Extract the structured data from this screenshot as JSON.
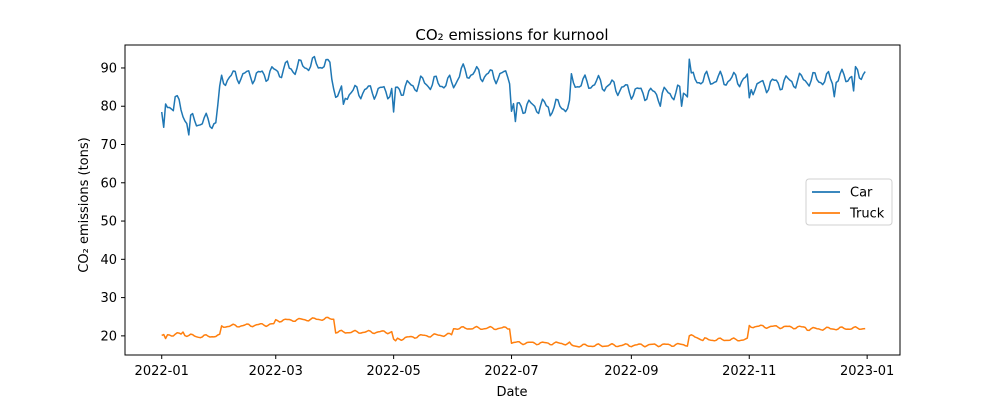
{
  "chart_data": {
    "type": "line",
    "title": "CO₂ emissions for kurnool",
    "xlabel": "Date",
    "ylabel": "CO₂ emissions (tons)",
    "xlim": [
      "2021-12-13",
      "2023-01-18"
    ],
    "ylim": [
      15,
      96
    ],
    "x_ticks": [
      "2022-01",
      "2022-03",
      "2022-05",
      "2022-07",
      "2022-09",
      "2022-11",
      "2023-01"
    ],
    "y_ticks": [
      20,
      30,
      40,
      50,
      60,
      70,
      80,
      90
    ],
    "grid": false,
    "legend_position": "center-right",
    "series": [
      {
        "name": "Car",
        "color": "#1f77b4",
        "base": [
          [
            "2022-01-01",
            78.5
          ],
          [
            "2022-01-05",
            80
          ],
          [
            "2022-01-09",
            81
          ],
          [
            "2022-01-13",
            77
          ],
          [
            "2022-01-17",
            76
          ],
          [
            "2022-01-21",
            76
          ],
          [
            "2022-01-25",
            76
          ],
          [
            "2022-01-29",
            76
          ],
          [
            "2022-02-01",
            87
          ],
          [
            "2022-02-10",
            88
          ],
          [
            "2022-02-20",
            88
          ],
          [
            "2022-03-01",
            89
          ],
          [
            "2022-03-10",
            90
          ],
          [
            "2022-03-20",
            91
          ],
          [
            "2022-03-29",
            91
          ],
          [
            "2022-04-01",
            83
          ],
          [
            "2022-04-15",
            84
          ],
          [
            "2022-05-01",
            84
          ],
          [
            "2022-05-15",
            86
          ],
          [
            "2022-06-01",
            86
          ],
          [
            "2022-06-05",
            89
          ],
          [
            "2022-06-20",
            88
          ],
          [
            "2022-06-30",
            88
          ],
          [
            "2022-07-01",
            80
          ],
          [
            "2022-07-15",
            80
          ],
          [
            "2022-07-31",
            80
          ],
          [
            "2022-08-01",
            86
          ],
          [
            "2022-08-15",
            86
          ],
          [
            "2022-09-01",
            84
          ],
          [
            "2022-09-15",
            83
          ],
          [
            "2022-09-30",
            84
          ],
          [
            "2022-10-01",
            87
          ],
          [
            "2022-10-15",
            87
          ],
          [
            "2022-10-31",
            87
          ],
          [
            "2022-11-01",
            85
          ],
          [
            "2022-11-15",
            86
          ],
          [
            "2022-12-01",
            87
          ],
          [
            "2022-12-15",
            87
          ],
          [
            "2022-12-31",
            89
          ]
        ],
        "amplitude": 2.2,
        "period_days": 7,
        "spikes": [
          [
            "2022-01-02",
            74.5
          ],
          [
            "2022-01-08",
            82.5
          ],
          [
            "2022-01-15",
            72.5
          ],
          [
            "2022-01-27",
            74.2
          ],
          [
            "2022-03-07",
            91.8
          ],
          [
            "2022-03-28",
            92.2
          ],
          [
            "2022-04-05",
            80.5
          ],
          [
            "2022-05-01",
            78.5
          ],
          [
            "2022-07-03",
            76
          ],
          [
            "2022-07-21",
            77.5
          ],
          [
            "2022-08-01",
            88.5
          ],
          [
            "2022-09-16",
            80
          ],
          [
            "2022-09-27",
            80
          ],
          [
            "2022-10-01",
            92.3
          ],
          [
            "2022-11-01",
            82.2
          ],
          [
            "2022-12-15",
            82.5
          ],
          [
            "2022-12-25",
            84
          ]
        ]
      },
      {
        "name": "Truck",
        "color": "#ff7f0e",
        "base": [
          [
            "2022-01-01",
            20
          ],
          [
            "2022-01-10",
            20.5
          ],
          [
            "2022-01-20",
            19.8
          ],
          [
            "2022-01-31",
            20
          ],
          [
            "2022-02-01",
            22.5
          ],
          [
            "2022-02-28",
            23
          ],
          [
            "2022-03-01",
            24
          ],
          [
            "2022-03-31",
            24.5
          ],
          [
            "2022-04-01",
            21
          ],
          [
            "2022-04-30",
            21
          ],
          [
            "2022-05-01",
            19
          ],
          [
            "2022-05-15",
            20
          ],
          [
            "2022-05-31",
            20.3
          ],
          [
            "2022-06-01",
            22
          ],
          [
            "2022-06-30",
            22
          ],
          [
            "2022-07-01",
            18.2
          ],
          [
            "2022-07-31",
            18
          ],
          [
            "2022-08-01",
            17.4
          ],
          [
            "2022-09-30",
            17.7
          ],
          [
            "2022-10-01",
            20
          ],
          [
            "2022-10-10",
            19
          ],
          [
            "2022-10-31",
            19
          ],
          [
            "2022-11-01",
            22.5
          ],
          [
            "2022-11-30",
            22.2
          ],
          [
            "2022-12-01",
            21.8
          ],
          [
            "2022-12-31",
            22
          ]
        ],
        "amplitude": 0.45,
        "period_days": 7,
        "spikes": [
          [
            "2022-01-03",
            19.3
          ],
          [
            "2022-01-12",
            21
          ],
          [
            "2022-05-02",
            18.7
          ],
          [
            "2022-06-30",
            21.8
          ],
          [
            "2022-10-08",
            18.8
          ]
        ]
      }
    ]
  }
}
